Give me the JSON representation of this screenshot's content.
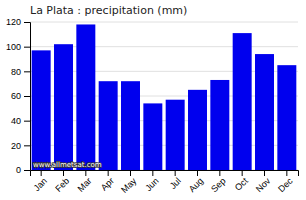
{
  "chart_data": {
    "type": "bar",
    "title": "La Plata : precipitation (mm)",
    "categories": [
      "Jan",
      "Feb",
      "Mar",
      "Apr",
      "May",
      "Jun",
      "Jul",
      "Aug",
      "Sep",
      "Oct",
      "Nov",
      "Dec"
    ],
    "values": [
      97,
      102,
      118,
      72,
      72,
      54,
      57,
      65,
      73,
      111,
      94,
      85
    ],
    "color": "#0000ee",
    "ylim": [
      0,
      120
    ],
    "yticks": [
      0,
      20,
      40,
      60,
      80,
      100,
      120
    ],
    "grid": true,
    "annotations": [
      "www.allmetsat.com"
    ]
  }
}
